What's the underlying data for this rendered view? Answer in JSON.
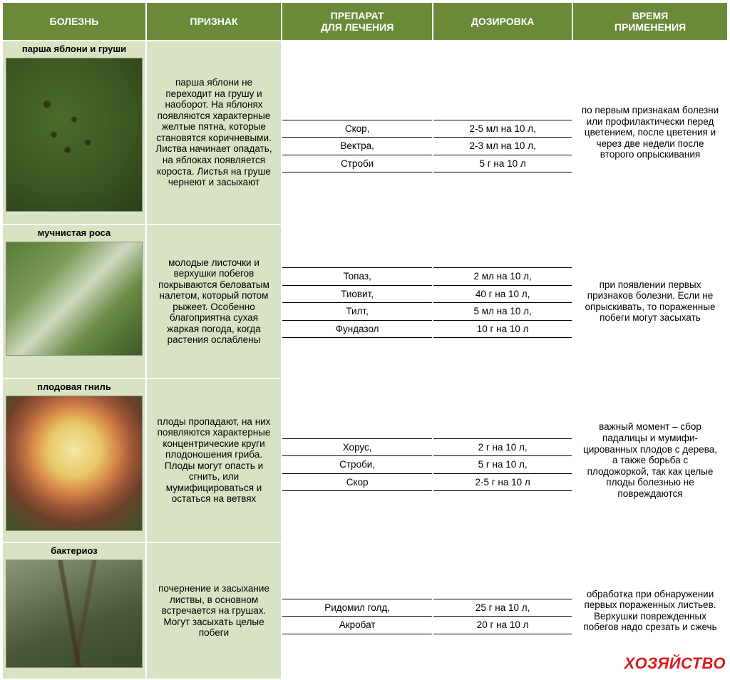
{
  "headers": {
    "h1": "БОЛЕЗНЬ",
    "h2": "ПРИЗНАК",
    "h3": "ПРЕПАРАТ\nДЛЯ ЛЕЧЕНИЯ",
    "h4": "ДОЗИРОВКА",
    "h5": "ВРЕМЯ\nПРИМЕНЕНИЯ"
  },
  "rows": [
    {
      "disease": "парша яблони и груши",
      "sign": "парша яблони не переходит на грушу и наоборот. На яблонях появляются характерные желтые пятна, которые становятся коричневыми. Листва начинает опадать, на яблоках появляется короста. Листья на груше чернеют и засыхают",
      "drugs": [
        "Скор,",
        "Вектра,",
        "Строби"
      ],
      "doses": [
        "2-5 мл на 10 л,",
        "2-3 мл на 10 л,",
        "5 г на 10 л"
      ],
      "time": "по первым признакам болезни или профи­лактически перед цветением, после цветения и через две недели после второго опрыскивания"
    },
    {
      "disease": "мучнистая роса",
      "sign": "молодые листочки и верхушки побегов покрываются беловатым налетом, который потом рыжеет. Особенно благоприятна сухая жаркая погода, когда растения ослаблены",
      "drugs": [
        "Топаз,",
        "Тиовит,",
        "Тилт,",
        "Фундазол"
      ],
      "doses": [
        "2 мл на 10 л,",
        "40 г на 10 л,",
        "5 мл на 10 л,",
        "10 г на 10 л"
      ],
      "time": "при появлении первых признаков болезни. Если не опрыскивать, то пораженные побеги могут засыхать"
    },
    {
      "disease": "плодовая гниль",
      "sign": "плоды пропадают, на них появляются характерные концентрические круги плодоношения гриба. Плоды могут опасть и сгнить, или мумифицироваться и остаться на ветвях",
      "drugs": [
        "Хорус,",
        "Строби,",
        "Скор"
      ],
      "doses": [
        "2 г на 10 л,",
        "5 г на 10 л,",
        "2-5 г на 10 л"
      ],
      "time": "важный момент – сбор падалицы и мумифи­цированных плодов с дерева, а также борьба с плодожоркой, так как целые плоды болезнью не повреждаются"
    },
    {
      "disease": "бактериоз",
      "sign": "почернение и засыхание листвы, в основном встречается на грушах. Могут засыхать целые побеги",
      "drugs": [
        "Ридомил голд,",
        "Акробат"
      ],
      "doses": [
        "25 г на 10 л,",
        "20 г на 10 л"
      ],
      "time": "обработка при об­наружении первых пораженных листьев. Верхушки поврежден­ных побегов надо срезать и сжечь"
    }
  ],
  "logo": "ХОЗЯЙСТВО",
  "colors": {
    "header_bg": "#6a8a3a",
    "cell_bg": "#d7e3c3",
    "border": "#000000",
    "logo_color": "#d91a1a"
  }
}
